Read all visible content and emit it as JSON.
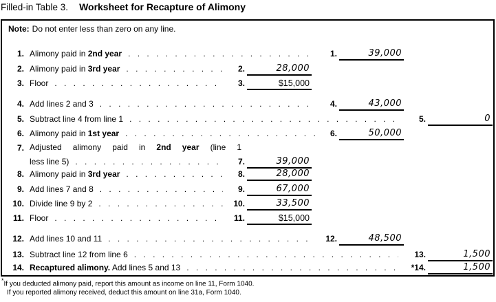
{
  "title": {
    "prefix": "Filled-in Table 3.",
    "main": "Worksheet for Recapture of Alimony"
  },
  "note": {
    "label": "Note:",
    "text": "Do not enter less than zero on any line."
  },
  "rows": [
    {
      "num": "1.",
      "parts": [
        {
          "text": "Alimony paid in ",
          "bold": false
        },
        {
          "text": "2nd year",
          "bold": true
        }
      ],
      "answer": {
        "label": "1.",
        "value": "39,000",
        "column": "B",
        "value_style": "handwritten"
      }
    },
    {
      "num": "2.",
      "parts": [
        {
          "text": "Alimony paid in ",
          "bold": false
        },
        {
          "text": "3rd year",
          "bold": true
        }
      ],
      "answer": {
        "label": "2.",
        "value": "28,000",
        "column": "A",
        "value_style": "handwritten"
      }
    },
    {
      "num": "3.",
      "parts": [
        {
          "text": "Floor",
          "bold": false
        }
      ],
      "answer": {
        "label": "3.",
        "value": "$15,000",
        "column": "A",
        "value_style": "printed"
      }
    },
    {
      "num": "4.",
      "parts": [
        {
          "text": "Add lines 2 and 3",
          "bold": false
        }
      ],
      "answer": {
        "label": "4.",
        "value": "43,000",
        "column": "B",
        "value_style": "handwritten"
      }
    },
    {
      "num": "5.",
      "parts": [
        {
          "text": "Subtract line 4 from line 1",
          "bold": false
        }
      ],
      "answer": {
        "label": "5.",
        "value": "0",
        "column": "C",
        "value_style": "handwritten"
      }
    },
    {
      "num": "6.",
      "parts": [
        {
          "text": "Alimony paid in ",
          "bold": false
        },
        {
          "text": "1st year",
          "bold": true
        }
      ],
      "answer": {
        "label": "6.",
        "value": "50,000",
        "column": "B",
        "value_style": "handwritten"
      }
    },
    {
      "num": "7.",
      "parts": [
        {
          "text": "Adjusted alimony paid in ",
          "bold": false
        },
        {
          "text": "2nd year",
          "bold": true
        },
        {
          "text": " (line 1",
          "bold": false
        }
      ],
      "text2": "less line 5)",
      "answer": {
        "label": "7.",
        "value": "39,000",
        "column": "A",
        "value_style": "handwritten"
      }
    },
    {
      "num": "8.",
      "parts": [
        {
          "text": "Alimony paid in ",
          "bold": false
        },
        {
          "text": "3rd year",
          "bold": true
        }
      ],
      "answer": {
        "label": "8.",
        "value": "28,000",
        "column": "A",
        "value_style": "handwritten"
      }
    },
    {
      "num": "9.",
      "parts": [
        {
          "text": "Add lines 7 and 8",
          "bold": false
        }
      ],
      "answer": {
        "label": "9.",
        "value": "67,000",
        "column": "A",
        "value_style": "handwritten"
      }
    },
    {
      "num": "10.",
      "parts": [
        {
          "text": "Divide line 9 by 2",
          "bold": false
        }
      ],
      "answer": {
        "label": "10.",
        "value": "33,500",
        "column": "A",
        "value_style": "handwritten"
      }
    },
    {
      "num": "11.",
      "parts": [
        {
          "text": "Floor",
          "bold": false
        }
      ],
      "answer": {
        "label": "11.",
        "value": "$15,000",
        "column": "A",
        "value_style": "printed"
      }
    },
    {
      "num": "12.",
      "parts": [
        {
          "text": "Add lines 10 and 11",
          "bold": false
        }
      ],
      "answer": {
        "label": "12.",
        "value": "48,500",
        "column": "B",
        "value_style": "handwritten"
      }
    },
    {
      "num": "13.",
      "parts": [
        {
          "text": "Subtract line 12 from line 6",
          "bold": false
        }
      ],
      "answer": {
        "label": "13.",
        "value": "1,500",
        "column": "C",
        "value_style": "handwritten"
      }
    },
    {
      "num": "14.",
      "parts": [
        {
          "text": "Recaptured alimony.",
          "bold": true
        },
        {
          "text": " Add lines 5 and 13",
          "bold": false
        }
      ],
      "answer": {
        "label": "*14.",
        "value": "1,500",
        "column": "C",
        "value_style": "handwritten"
      }
    }
  ],
  "footnotes": [
    {
      "marker": "*",
      "text": "If you deducted alimony paid, report this amount as income on line 11, Form 1040."
    },
    {
      "marker": "",
      "text": "If you reported alimony received, deduct this amount on line 31a, Form 1040."
    }
  ]
}
